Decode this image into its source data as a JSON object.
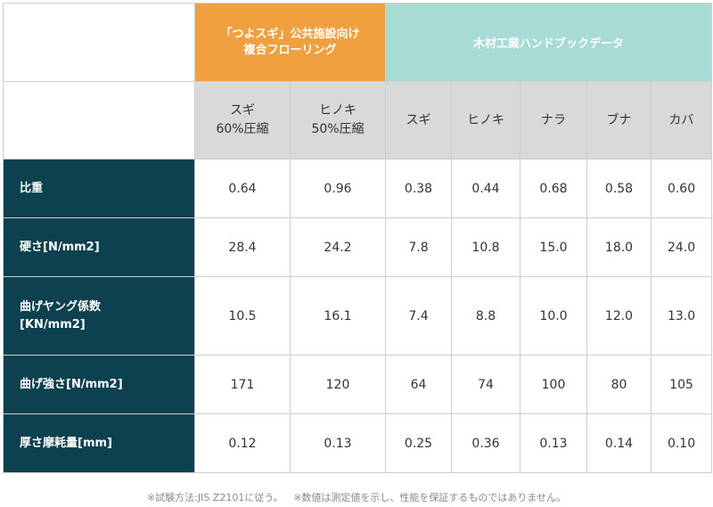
{
  "header": {
    "group_own": "「つよスギ」公共施設向け\n複合フローリング",
    "group_own_line1": "「つよスギ」公共施設向け",
    "group_own_line2": "複合フローリング",
    "group_ref": "木材工業ハンドブックデータ"
  },
  "columns": [
    {
      "line1": "スギ",
      "line2": "60%圧縮"
    },
    {
      "line1": "ヒノキ",
      "line2": "50%圧縮"
    },
    {
      "line1": "スギ",
      "line2": ""
    },
    {
      "line1": "ヒノキ",
      "line2": ""
    },
    {
      "line1": "ナラ",
      "line2": ""
    },
    {
      "line1": "ブナ",
      "line2": ""
    },
    {
      "line1": "カバ",
      "line2": ""
    }
  ],
  "rows": [
    {
      "label_line1": "比重",
      "label_line2": "",
      "values": [
        "0.64",
        "0.96",
        "0.38",
        "0.44",
        "0.68",
        "0.58",
        "0.60"
      ]
    },
    {
      "label_line1": "硬さ[N/mm2]",
      "label_line2": "",
      "values": [
        "28.4",
        "24.2",
        "7.8",
        "10.8",
        "15.0",
        "18.0",
        "24.0"
      ]
    },
    {
      "label_line1": "曲げヤング係数",
      "label_line2": "[KN/mm2]",
      "values": [
        "10.5",
        "16.1",
        "7.4",
        "8.8",
        "10.0",
        "12.0",
        "13.0"
      ]
    },
    {
      "label_line1": "曲げ強さ[N/mm2]",
      "label_line2": "",
      "values": [
        "171",
        "120",
        "64",
        "74",
        "100",
        "80",
        "105"
      ]
    },
    {
      "label_line1": "厚さ摩耗量[mm]",
      "label_line2": "",
      "values": [
        "0.12",
        "0.13",
        "0.25",
        "0.36",
        "0.13",
        "0.14",
        "0.10"
      ]
    }
  ],
  "footnotes": [
    "※試験方法:JIS Z2101に従う。",
    "※数値は測定値を示し、性能を保証するものではありません。"
  ],
  "colors": {
    "own_group": "#f0a03f",
    "ref_group": "#a8dbd4",
    "subheader": "#d9d9d9",
    "row_header": "#0e4150"
  }
}
